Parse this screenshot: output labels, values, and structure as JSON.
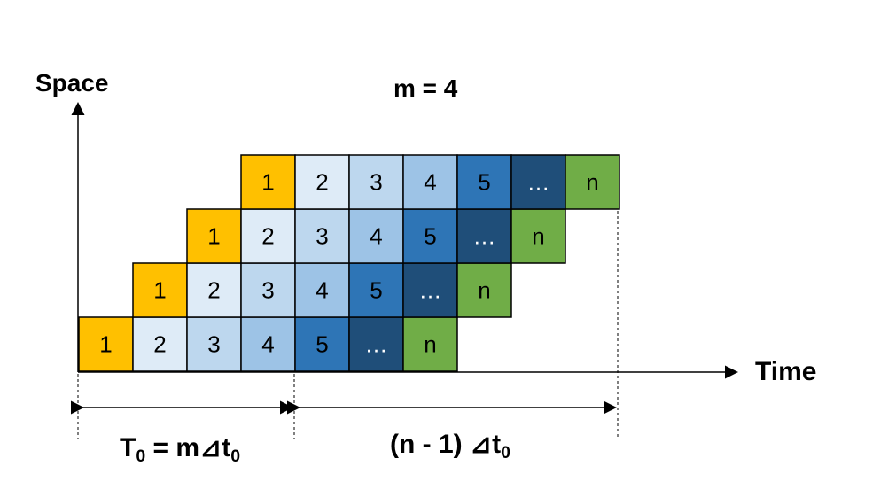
{
  "title": "m = 4",
  "y_axis_label": "Space",
  "x_axis_label": "Time",
  "rows": [
    {
      "cells": [
        "1",
        "2",
        "3",
        "4",
        "5",
        "…",
        "n"
      ]
    },
    {
      "cells": [
        "1",
        "2",
        "3",
        "4",
        "5",
        "…",
        "n"
      ]
    },
    {
      "cells": [
        "1",
        "2",
        "3",
        "4",
        "5",
        "…",
        "n"
      ]
    },
    {
      "cells": [
        "1",
        "2",
        "3",
        "4",
        "5",
        "…",
        "n"
      ]
    }
  ],
  "cell_colors": [
    "#FFC000",
    "#DEEBF7",
    "#BDD7EE",
    "#9DC3E6",
    "#2E75B6",
    "#1F4E79",
    "#70AD47"
  ],
  "dim_left": {
    "main": "T",
    "sub": "0",
    "rest": " = m",
    "tri": "⊿",
    "t": "t",
    "tsub": "0"
  },
  "dim_right": {
    "main": "(n - 1) ",
    "tri": "⊿",
    "t": "t",
    "tsub": "0"
  }
}
